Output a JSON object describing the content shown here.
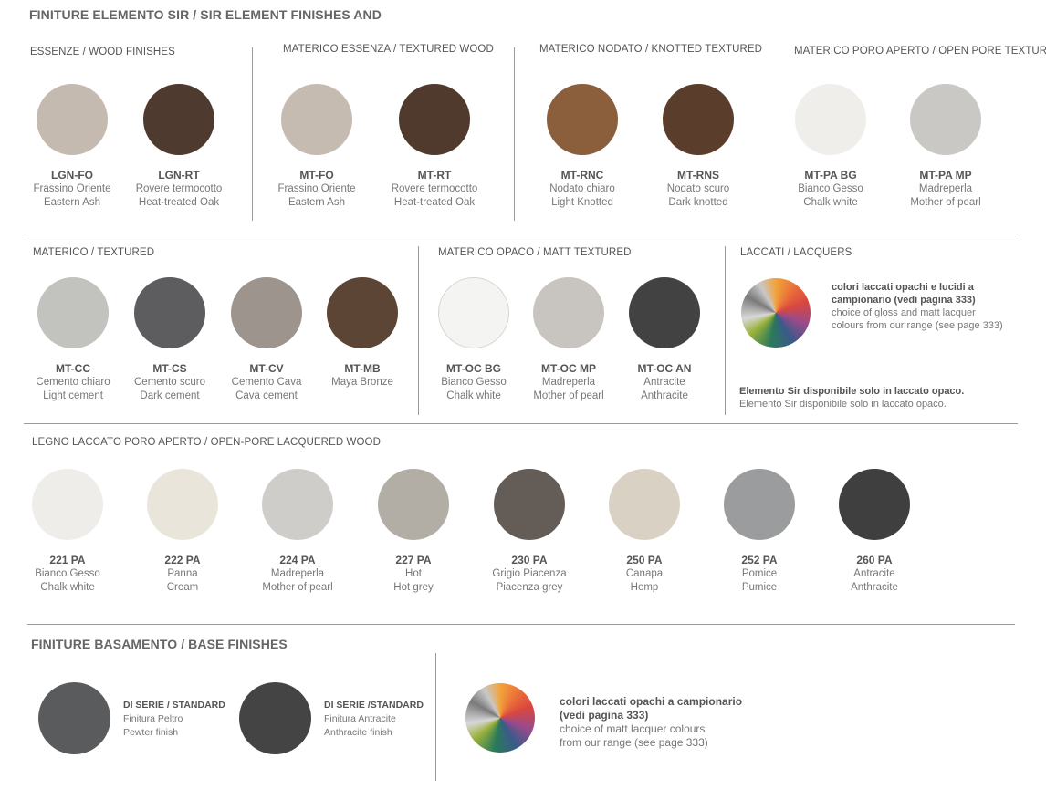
{
  "title": "FINITURE ELEMENTO SIR / SIR ELEMENT FINISHES AND",
  "sections": {
    "wood": {
      "title": "ESSENZE / WOOD FINISHES",
      "swatches": [
        {
          "code": "LGN-FO",
          "it": "Frassino Oriente",
          "en": "Eastern Ash",
          "color": "#c4bab0"
        },
        {
          "code": "LGN-RT",
          "it": "Rovere termocotto",
          "en": "Heat-treated Oak",
          "color": "#4e3a2e"
        }
      ]
    },
    "textured_wood": {
      "title": "MATERICO ESSENZA / TEXTURED WOOD",
      "swatches": [
        {
          "code": "MT-FO",
          "it": "Frassino Oriente",
          "en": "Eastern Ash",
          "color": "#c6bbb1"
        },
        {
          "code": "MT-RT",
          "it": "Rovere termocotto",
          "en": "Heat-treated Oak",
          "color": "#4f3a2d"
        }
      ]
    },
    "knotted": {
      "title": "MATERICO NODATO / KNOTTED TEXTURED",
      "swatches": [
        {
          "code": "MT-RNC",
          "it": "Nodato chiaro",
          "en": "Light Knotted",
          "color": "#8b5e3c"
        },
        {
          "code": "MT-RNS",
          "it": "Nodato scuro",
          "en": "Dark knotted",
          "color": "#5a3e2b"
        }
      ]
    },
    "open_pore": {
      "title": "MATERICO PORO APERTO / OPEN PORE TEXTURED",
      "swatches": [
        {
          "code": "MT-PA BG",
          "it": "Bianco Gesso",
          "en": "Chalk white",
          "color": "#efeeea"
        },
        {
          "code": "MT-PA MP",
          "it": "Madreperla",
          "en": "Mother of pearl",
          "color": "#c9c8c4"
        }
      ]
    },
    "textured": {
      "title": "MATERICO  / TEXTURED",
      "swatches": [
        {
          "code": "MT-CC",
          "it": "Cemento chiaro",
          "en": "Light cement",
          "color": "#c2c2bf"
        },
        {
          "code": "MT-CS",
          "it": "Cemento scuro",
          "en": "Dark cement",
          "color": "#5d5d5f"
        },
        {
          "code": "MT-CV",
          "it": "Cemento Cava",
          "en": "Cava cement",
          "color": "#9d958d"
        },
        {
          "code": "MT-MB",
          "it": "Maya Bronze",
          "en": "",
          "color": "#5c4535"
        }
      ]
    },
    "matt_textured": {
      "title": "MATERICO OPACO / MATT TEXTURED",
      "swatches": [
        {
          "code": "MT-OC BG",
          "it": "Bianco Gesso",
          "en": "Chalk white",
          "color": "#f4f4f2"
        },
        {
          "code": "MT-OC MP",
          "it": "Madreperla",
          "en": "Mother of pearl",
          "color": "#c8c5c0"
        },
        {
          "code": "MT-OC AN",
          "it": "Antracite",
          "en": "Anthracite",
          "color": "#424242"
        }
      ]
    },
    "lacquers": {
      "title": "LACCATI / LACQUERS",
      "note_it": "colori laccati opachi e lucidi a",
      "note_it2": "campionario (vedi pagina 333)",
      "note_en": "choice of gloss and matt lacquer",
      "note_en2": "colours from our range (see page 333)",
      "avail_it": "Elemento Sir disponibile solo in laccato opaco.",
      "avail_en": "Elemento Sir disponibile solo in laccato opaco."
    },
    "lacquered_wood": {
      "title": "LEGNO LACCATO PORO APERTO / OPEN-PORE LACQUERED WOOD",
      "swatches": [
        {
          "code": "221 PA",
          "it": "Bianco Gesso",
          "en": "Chalk white",
          "color": "#eeede9"
        },
        {
          "code": "222 PA",
          "it": "Panna",
          "en": "Cream",
          "color": "#e9e5da"
        },
        {
          "code": "224 PA",
          "it": "Madreperla",
          "en": "Mother of pearl",
          "color": "#cfcdc9"
        },
        {
          "code": "227 PA",
          "it": "Hot",
          "en": "Hot grey",
          "color": "#b2ada5"
        },
        {
          "code": "230 PA",
          "it": "Grigio Piacenza",
          "en": "Piacenza grey",
          "color": "#645c57"
        },
        {
          "code": "250 PA",
          "it": "Canapa",
          "en": "Hemp",
          "color": "#d9d1c3"
        },
        {
          "code": "252 PA",
          "it": "Pomice",
          "en": "Pumice",
          "color": "#9b9c9d"
        },
        {
          "code": "260 PA",
          "it": "Antracite",
          "en": "Anthracite",
          "color": "#3f3f3f"
        }
      ]
    },
    "base": {
      "title": "FINITURE BASAMENTO / BASE FINISHES",
      "items": [
        {
          "label": "DI SERIE / STANDARD",
          "it": "Finitura Peltro",
          "en": "Pewter finish",
          "color": "#5a5b5c"
        },
        {
          "label": "DI SERIE /STANDARD",
          "it": "Finitura Antracite",
          "en": "Anthracite finish",
          "color": "#444444"
        }
      ],
      "lacquer_note_1": "colori laccati opachi a campionario",
      "lacquer_note_2": "(vedi pagina 333)",
      "lacquer_note_3": "choice of  matt lacquer colours",
      "lacquer_note_4": "from our range (see page 333)"
    }
  }
}
